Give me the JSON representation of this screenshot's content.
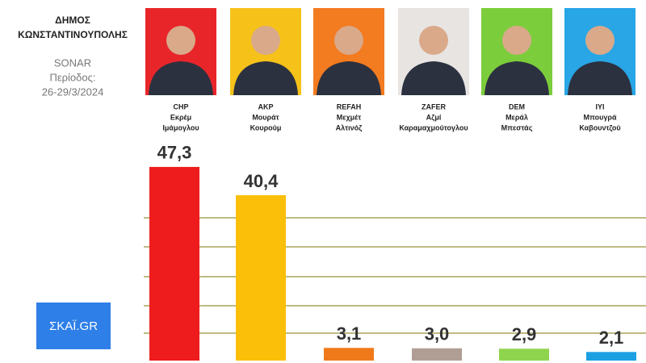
{
  "chart_data": {
    "type": "bar",
    "title": [
      "ΔΗΜΟΣ",
      "ΚΩΝΣΤΑΝΤΙΝΟΥΠΟΛΗΣ"
    ],
    "source": "SONAR",
    "period_label": "Περίοδος:",
    "period": "26-29/3/2024",
    "categories": [
      "CHP",
      "AKP",
      "REFAH",
      "ZAFER",
      "DEM",
      "IYI"
    ],
    "first_names": [
      "Εκρέμ",
      "Μουράτ",
      "Μεχμέτ",
      "Αζμί",
      "Μεράλ",
      "Μπουγρά"
    ],
    "last_names": [
      "Ιμάμογλου",
      "Κουρούμ",
      "Αλτινόζ",
      "Καραμαχμούτογλου",
      "Μπεστάς",
      "Καβουντζού"
    ],
    "values": [
      47.3,
      40.4,
      3.1,
      3.0,
      2.9,
      2.1
    ],
    "value_labels": [
      "47,3",
      "40,4",
      "3,1",
      "3,0",
      "2,9",
      "2,1"
    ],
    "colors": [
      "#ee1c1c",
      "#fbbf0a",
      "#f07a1a",
      "#b09e95",
      "#8ed44c",
      "#1ba0e2"
    ],
    "ylim": [
      0,
      53
    ],
    "logo": "ΣΚΑΪ.GR"
  }
}
